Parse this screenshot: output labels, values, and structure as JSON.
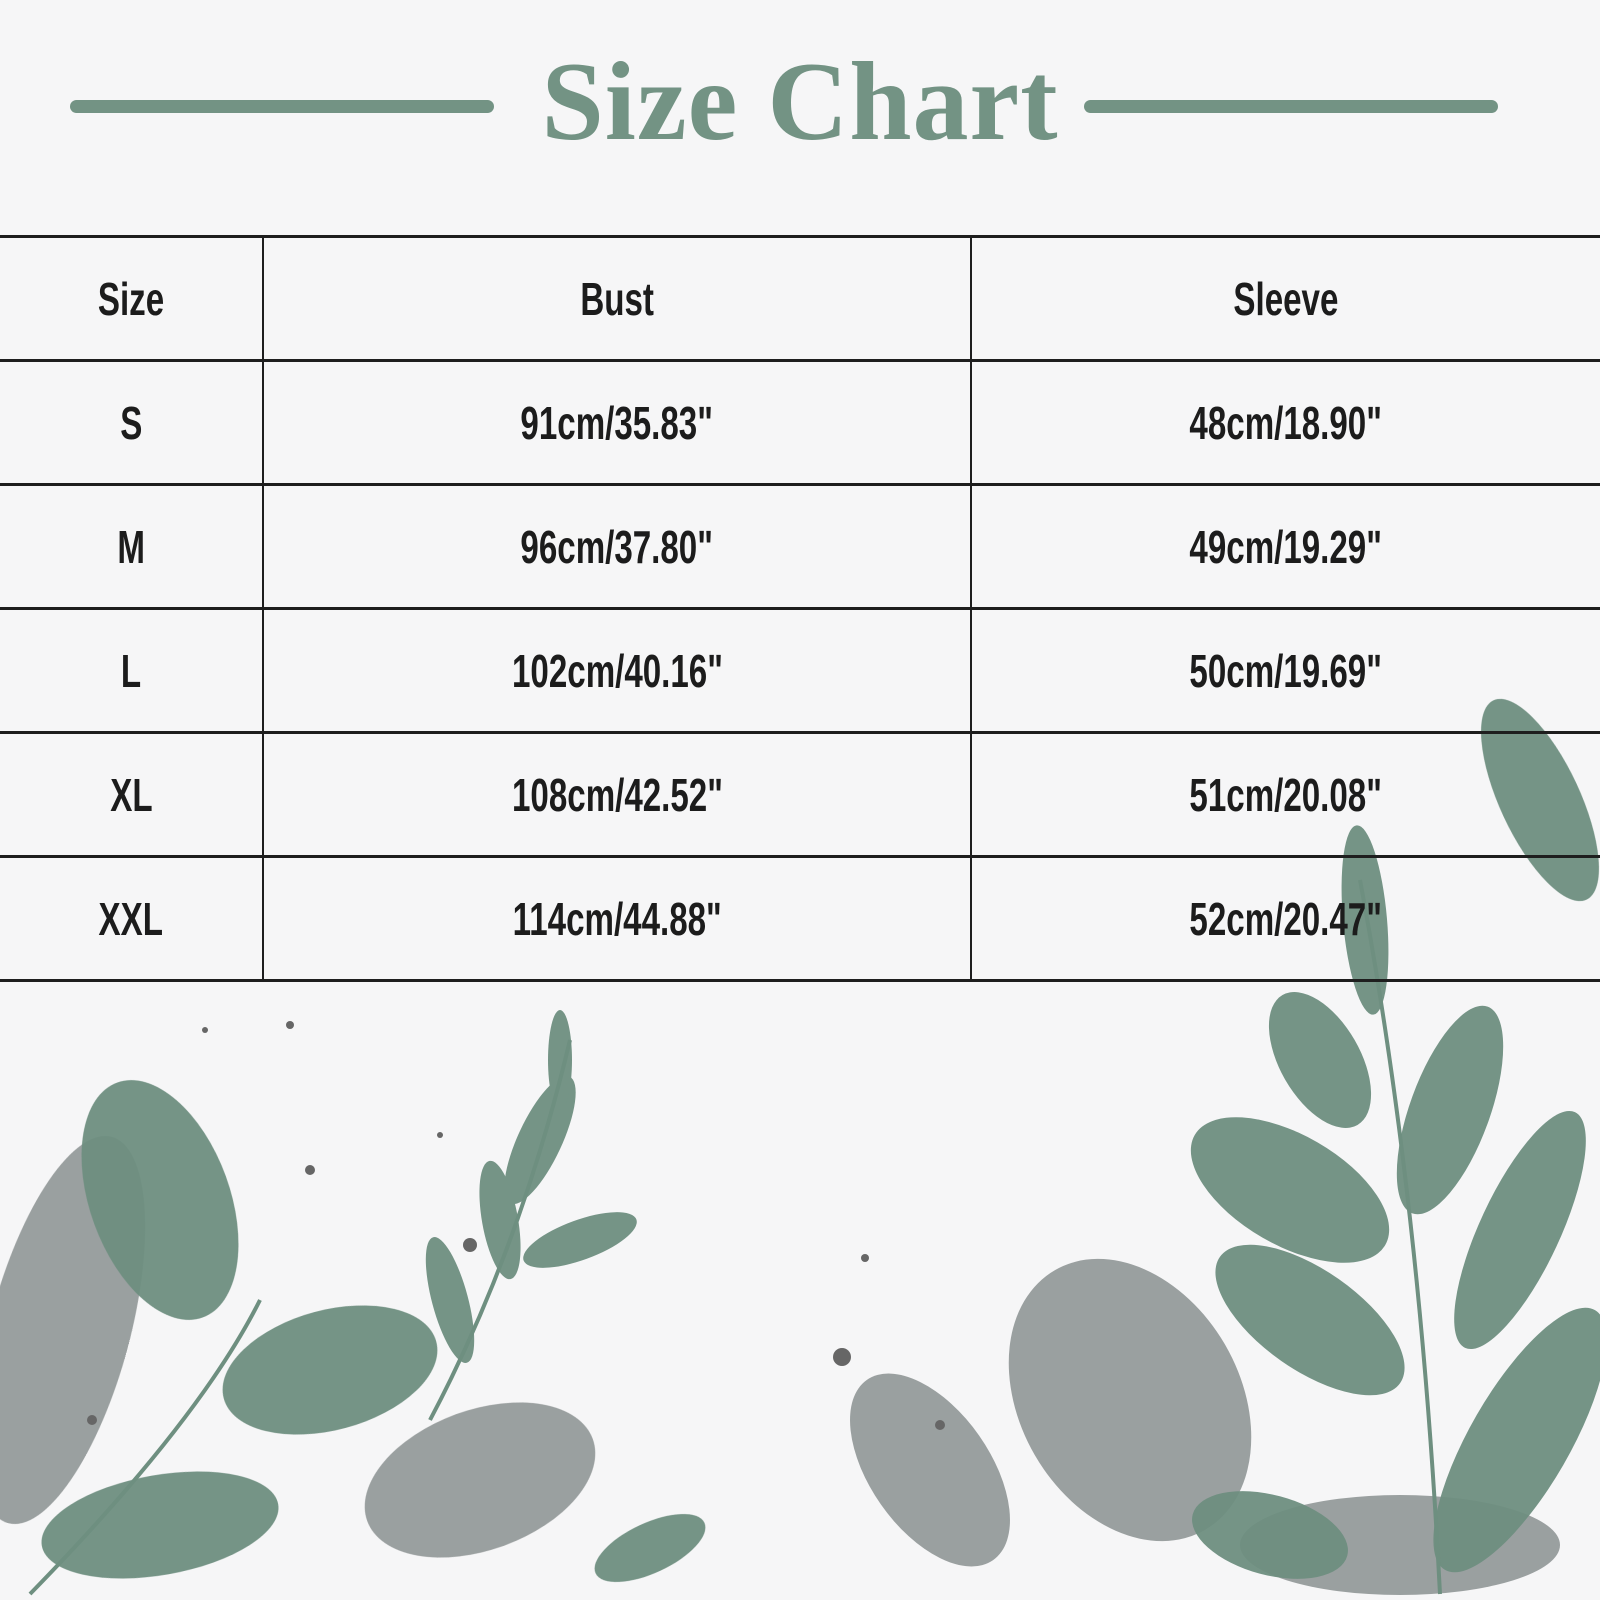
{
  "title": "Size Chart",
  "colors": {
    "accent": "#739384",
    "leaf_gray": "#8a8f8f",
    "text": "#1c1c1c"
  },
  "table": {
    "headers": [
      "Size",
      "Bust",
      "Sleeve"
    ],
    "rows": [
      [
        "S",
        "91cm/35.83\"",
        "48cm/18.90\""
      ],
      [
        "M",
        "96cm/37.80\"",
        "49cm/19.29\""
      ],
      [
        "L",
        "102cm/40.16\"",
        "50cm/19.69\""
      ],
      [
        "XL",
        "108cm/42.52\"",
        "51cm/20.08\""
      ],
      [
        "XXL",
        "114cm/44.88\"",
        "52cm/20.47\""
      ]
    ]
  }
}
